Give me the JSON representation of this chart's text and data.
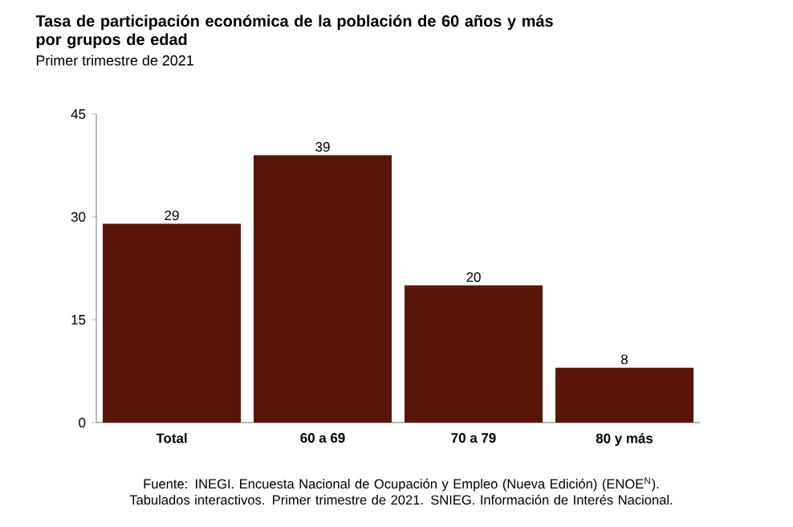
{
  "chart_data": {
    "type": "bar",
    "title": "Tasa de participación económica de la población de 60 años y más por grupos de edad",
    "subtitle": "Primer trimestre de 2021",
    "categories": [
      "Total",
      "60 a 69",
      "70 a 79",
      "80 y más"
    ],
    "values": [
      29,
      39,
      20,
      8
    ],
    "color": "#5a150b",
    "ylim": [
      0,
      45
    ],
    "yticks": [
      0,
      15,
      30,
      45
    ],
    "data_labels": true,
    "annotations": [
      "Fuente: INEGI. Encuesta Nacional de Ocupación y Empleo (Nueva Edición) (ENOE$^{N}$). Tabulados interactivos. Primer trimestre de 2021. SNIEG. Información de Interés Nacional."
    ]
  }
}
